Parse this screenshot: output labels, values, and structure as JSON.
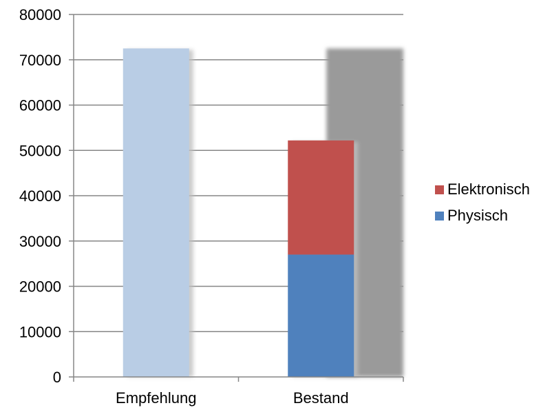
{
  "chart_data": {
    "type": "bar",
    "stacked": true,
    "categories": [
      "Empfehlung",
      "Bestand"
    ],
    "series": [
      {
        "name": "Physisch",
        "values": [
          null,
          27000
        ],
        "color": "#4F81BD"
      },
      {
        "name": "Elektronisch",
        "values": [
          null,
          25200
        ],
        "color": "#C0504D"
      }
    ],
    "single_values": {
      "Empfehlung": 72500
    },
    "single_color": "#B9CDE5",
    "shadow_value": 72500,
    "shadow_color": "#9A9A9A",
    "yticks": [
      "0",
      "10000",
      "20000",
      "30000",
      "40000",
      "50000",
      "60000",
      "70000",
      "80000"
    ],
    "ylim": [
      0,
      80000
    ],
    "grid": true,
    "legend_position": "right",
    "title": "",
    "xlabel": "",
    "ylabel": ""
  }
}
